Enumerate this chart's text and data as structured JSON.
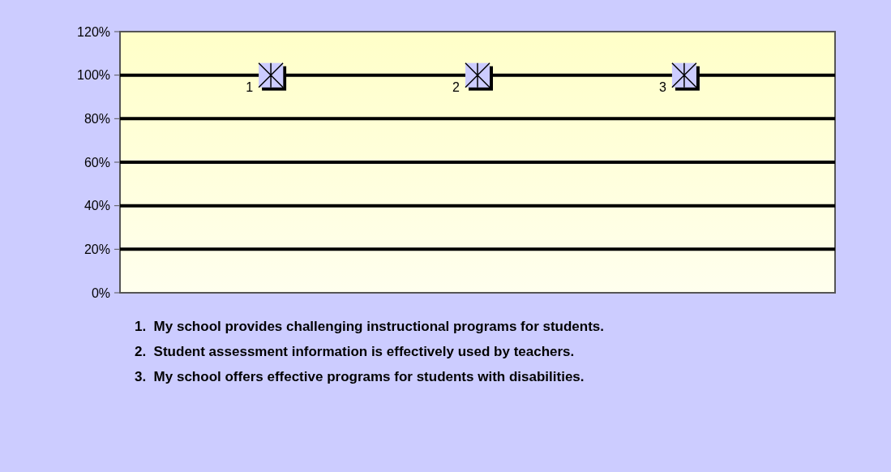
{
  "chart_data": {
    "type": "scatter",
    "categories": [
      "1",
      "2",
      "3"
    ],
    "series": [
      {
        "color": "#ccccff",
        "values": [
          100,
          100,
          100
        ]
      }
    ],
    "ylim": [
      0,
      120
    ],
    "yticks": [
      {
        "value": 0,
        "label": "0%"
      },
      {
        "value": 20,
        "label": "20%"
      },
      {
        "value": 40,
        "label": "40%"
      },
      {
        "value": 60,
        "label": "60%"
      },
      {
        "value": 80,
        "label": "80%"
      },
      {
        "value": 100,
        "label": "100%"
      },
      {
        "value": 120,
        "label": "120%"
      }
    ],
    "grid": "y",
    "marker": "square",
    "annotations": [
      "1.  My school provides challenging instructional programs for students.",
      "2.  Student assessment information is effectively used by teachers.",
      "3.  My school offers effective programs for students with disabilities."
    ]
  }
}
